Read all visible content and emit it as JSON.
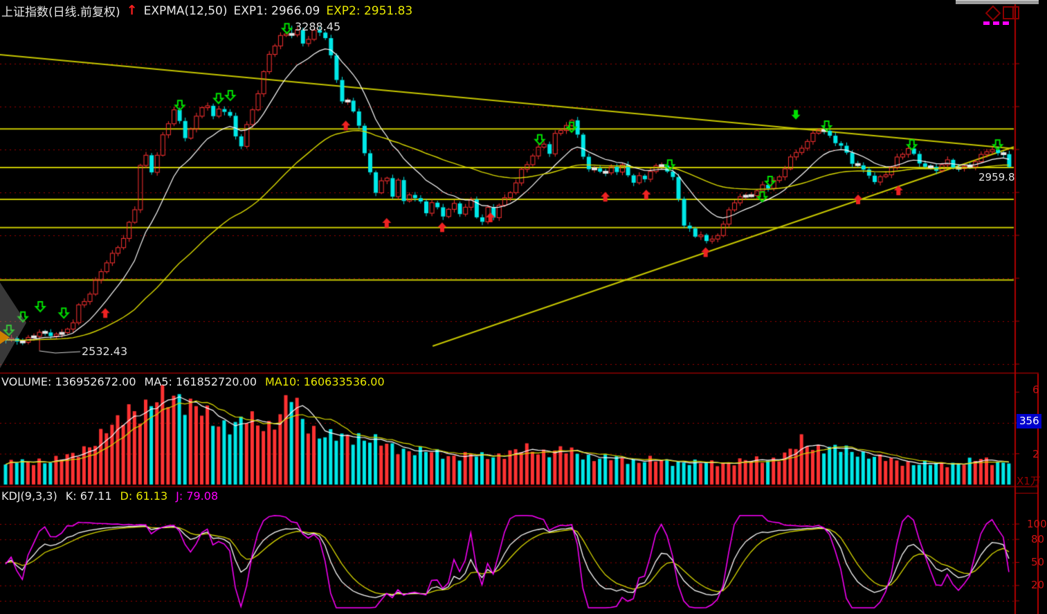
{
  "header": {
    "symbol": "上证指数(日线.前复权)",
    "signal_arrow": "↑",
    "indicator": "EXPMA(12,50)",
    "exp1": "EXP1: 2966.09",
    "exp2": "EXP2: 2951.83"
  },
  "volume_header": {
    "volume": "VOLUME: 136952672.00",
    "ma5": "MA5: 161852720.00",
    "ma10": "MA10: 160633536.00"
  },
  "kdj_header": {
    "name": "KDJ(9,3,3)",
    "k": "K: 67.11",
    "d": "D: 61.13",
    "j": "J: 79.08"
  },
  "price_labels": {
    "high": "3288.45",
    "low": "2532.43",
    "last": "2959.8"
  },
  "right_axis": {
    "volume_labels": [
      {
        "text": "6",
        "v": 60000
      },
      {
        "text": "2",
        "v": 20000
      }
    ],
    "volume_tag": {
      "text": "356",
      "v": 42000
    },
    "volume_scale": "X1万",
    "kdj_labels": [
      {
        "text": "100",
        "v": 100
      },
      {
        "text": "80",
        "v": 80
      },
      {
        "text": "50",
        "v": 50
      },
      {
        "text": "20",
        "v": 20
      }
    ]
  },
  "colors": {
    "up": "#ff3232",
    "down": "#00e8e8",
    "white_line": "#ffffff",
    "yellow_line": "#d9d900",
    "drawn_line": "#c8c800",
    "magenta": "#ff00ff",
    "grid": "#a00000",
    "separator": "#6e0000",
    "axis": "#b00000",
    "green_signal": "#00e000",
    "red_signal": "#ee2222",
    "bg": "#000000",
    "label_red": "#cc1414",
    "tag_blue": "#0000cc"
  },
  "chart_data": [
    {
      "type": "candlestick",
      "name": "price",
      "n": 180,
      "x_unit": "trading-day",
      "price_range": [
        2489,
        3303
      ],
      "grid_prices": [
        2500,
        2600,
        2700,
        2800,
        2900,
        3000,
        3100,
        3200
      ],
      "high_point": {
        "i": 51,
        "price": 3288.45
      },
      "low_point": {
        "i": 6,
        "price": 2532.43
      },
      "last_price": 2959.8,
      "exp1_value": 2966.09,
      "exp2_value": 2951.83,
      "close_anchors": [
        [
          0,
          2556
        ],
        [
          2,
          2550
        ],
        [
          3,
          2548
        ],
        [
          5,
          2572
        ],
        [
          6,
          2580
        ],
        [
          8,
          2566
        ],
        [
          10,
          2565
        ],
        [
          12,
          2600
        ],
        [
          13,
          2640
        ],
        [
          15,
          2665
        ],
        [
          17,
          2712
        ],
        [
          19,
          2755
        ],
        [
          21,
          2800
        ],
        [
          23,
          2860
        ],
        [
          24,
          2960
        ],
        [
          25,
          2978
        ],
        [
          26,
          2946
        ],
        [
          28,
          3036
        ],
        [
          30,
          3096
        ],
        [
          31,
          3060
        ],
        [
          32,
          3022
        ],
        [
          33,
          3046
        ],
        [
          35,
          3102
        ],
        [
          36,
          3110
        ],
        [
          37,
          3078
        ],
        [
          38,
          3094
        ],
        [
          39,
          3086
        ],
        [
          40,
          3070
        ],
        [
          41,
          3028
        ],
        [
          42,
          3012
        ],
        [
          43,
          3060
        ],
        [
          45,
          3135
        ],
        [
          46,
          3176
        ],
        [
          47,
          3216
        ],
        [
          48,
          3240
        ],
        [
          49,
          3262
        ],
        [
          50,
          3272
        ],
        [
          52,
          3280
        ],
        [
          53,
          3246
        ],
        [
          54,
          3256
        ],
        [
          55,
          3270
        ],
        [
          56,
          3268
        ],
        [
          57,
          3264
        ],
        [
          58,
          3222
        ],
        [
          59,
          3166
        ],
        [
          60,
          3118
        ],
        [
          61,
          3110
        ],
        [
          63,
          3054
        ],
        [
          64,
          2988
        ],
        [
          65,
          2948
        ],
        [
          66,
          2908
        ],
        [
          67,
          2930
        ],
        [
          68,
          2932
        ],
        [
          69,
          2890
        ],
        [
          70,
          2922
        ],
        [
          71,
          2874
        ],
        [
          72,
          2898
        ],
        [
          74,
          2882
        ],
        [
          75,
          2858
        ],
        [
          76,
          2874
        ],
        [
          78,
          2842
        ],
        [
          79,
          2858
        ],
        [
          80,
          2874
        ],
        [
          81,
          2858
        ],
        [
          83,
          2882
        ],
        [
          84,
          2842
        ],
        [
          85,
          2826
        ],
        [
          86,
          2858
        ],
        [
          87,
          2844
        ],
        [
          88,
          2874
        ],
        [
          90,
          2906
        ],
        [
          91,
          2922
        ],
        [
          92,
          2946
        ],
        [
          93,
          2962
        ],
        [
          95,
          3004
        ],
        [
          96,
          3020
        ],
        [
          97,
          2996
        ],
        [
          98,
          3036
        ],
        [
          99,
          3044
        ],
        [
          101,
          3060
        ],
        [
          102,
          3036
        ],
        [
          103,
          2988
        ],
        [
          104,
          2956
        ],
        [
          105,
          2962
        ],
        [
          107,
          2938
        ],
        [
          108,
          2956
        ],
        [
          109,
          2946
        ],
        [
          110,
          2962
        ],
        [
          112,
          2930
        ],
        [
          113,
          2938
        ],
        [
          114,
          2930
        ],
        [
          115,
          2946
        ],
        [
          117,
          2962
        ],
        [
          118,
          2954
        ],
        [
          119,
          2938
        ],
        [
          120,
          2890
        ],
        [
          121,
          2826
        ],
        [
          123,
          2792
        ],
        [
          124,
          2800
        ],
        [
          125,
          2784
        ],
        [
          127,
          2808
        ],
        [
          128,
          2826
        ],
        [
          129,
          2858
        ],
        [
          130,
          2874
        ],
        [
          132,
          2890
        ],
        [
          133,
          2898
        ],
        [
          134,
          2906
        ],
        [
          135,
          2922
        ],
        [
          136,
          2914
        ],
        [
          138,
          2930
        ],
        [
          139,
          2954
        ],
        [
          140,
          2980
        ],
        [
          142,
          3012
        ],
        [
          143,
          3020
        ],
        [
          144,
          3036
        ],
        [
          145,
          3044
        ],
        [
          146,
          3036
        ],
        [
          148,
          3020
        ],
        [
          149,
          3012
        ],
        [
          150,
          2996
        ],
        [
          151,
          2972
        ],
        [
          153,
          2946
        ],
        [
          154,
          2938
        ],
        [
          155,
          2922
        ],
        [
          156,
          2938
        ],
        [
          158,
          2962
        ],
        [
          159,
          2980
        ],
        [
          160,
          2988
        ],
        [
          161,
          2996
        ],
        [
          163,
          2972
        ],
        [
          164,
          2964
        ],
        [
          165,
          2962
        ],
        [
          166,
          2956
        ],
        [
          168,
          2968
        ],
        [
          169,
          2956
        ],
        [
          170,
          2954
        ],
        [
          172,
          2968
        ],
        [
          173,
          2976
        ],
        [
          174,
          2986
        ],
        [
          175,
          2994
        ],
        [
          176,
          2996
        ],
        [
          177,
          2988
        ],
        [
          178,
          2990
        ],
        [
          179,
          2959.8
        ]
      ],
      "hlines": [
        {
          "price": 3048,
          "i1": -1,
          "i2": 180.2
        },
        {
          "price": 2958,
          "i1": -1,
          "i2": 180.2
        },
        {
          "price": 2884,
          "i1": -1,
          "i2": 180.2
        },
        {
          "price": 2818,
          "i1": -1,
          "i2": 180.2
        },
        {
          "price": 2696,
          "i1": -1,
          "i2": 180.2
        }
      ],
      "trendlines": [
        {
          "i1": -1,
          "p1": 3221,
          "i2": 180.3,
          "p2": 3002
        },
        {
          "i1": 76.2,
          "p1": 2542,
          "i2": 180.3,
          "p2": 3006
        }
      ],
      "markers": {
        "sell_hollow": [
          {
            "i": 0.6,
            "p": 2579
          },
          {
            "i": 3.1,
            "p": 2610
          },
          {
            "i": 6.2,
            "p": 2634
          },
          {
            "i": 10.4,
            "p": 2619
          },
          {
            "i": 31.1,
            "p": 3103
          },
          {
            "i": 38,
            "p": 3119
          },
          {
            "i": 40.1,
            "p": 3126
          },
          {
            "i": 50.2,
            "p": 3282
          },
          {
            "i": 95.3,
            "p": 3023
          },
          {
            "i": 101,
            "p": 3052
          },
          {
            "i": 118.5,
            "p": 2964
          },
          {
            "i": 135,
            "p": 2890
          },
          {
            "i": 136.4,
            "p": 2926
          },
          {
            "i": 146.5,
            "p": 3055
          },
          {
            "i": 161.7,
            "p": 3011
          },
          {
            "i": 177,
            "p": 3011
          }
        ],
        "sell_solid": [
          {
            "i": 141,
            "p": 3081
          }
        ],
        "buy_solid": [
          {
            "i": 17.8,
            "p": 2619
          },
          {
            "i": 60.7,
            "p": 3056
          },
          {
            "i": 68,
            "p": 2829
          },
          {
            "i": 77.9,
            "p": 2819
          },
          {
            "i": 86.5,
            "p": 2842
          },
          {
            "i": 107,
            "p": 2890
          },
          {
            "i": 114.3,
            "p": 2895
          },
          {
            "i": 124.9,
            "p": 2761
          },
          {
            "i": 152.1,
            "p": 2884
          },
          {
            "i": 159.3,
            "p": 2905
          }
        ]
      }
    },
    {
      "type": "bar",
      "name": "volume",
      "unit": "万",
      "max": 62000,
      "grid_values": [
        20000,
        40000
      ],
      "anchors": [
        [
          0,
          13000
        ],
        [
          2,
          15000
        ],
        [
          4,
          14000
        ],
        [
          6,
          16000
        ],
        [
          8,
          15000
        ],
        [
          10,
          17000
        ],
        [
          12,
          19000
        ],
        [
          14,
          24000
        ],
        [
          16,
          28000
        ],
        [
          18,
          34000
        ],
        [
          20,
          40000
        ],
        [
          22,
          52000
        ],
        [
          24,
          46000
        ],
        [
          26,
          50000
        ],
        [
          28,
          56000
        ],
        [
          30,
          60000
        ],
        [
          31,
          58000
        ],
        [
          33,
          50000
        ],
        [
          35,
          46000
        ],
        [
          37,
          42000
        ],
        [
          39,
          40000
        ],
        [
          41,
          38000
        ],
        [
          43,
          42000
        ],
        [
          45,
          40000
        ],
        [
          47,
          39000
        ],
        [
          49,
          45000
        ],
        [
          51,
          57000
        ],
        [
          53,
          42000
        ],
        [
          55,
          36000
        ],
        [
          57,
          32000
        ],
        [
          59,
          30000
        ],
        [
          61,
          30000
        ],
        [
          63,
          32000
        ],
        [
          65,
          30000
        ],
        [
          67,
          26000
        ],
        [
          69,
          24000
        ],
        [
          71,
          23000
        ],
        [
          73,
          22000
        ],
        [
          75,
          21000
        ],
        [
          77,
          20000
        ],
        [
          79,
          19000
        ],
        [
          81,
          18500
        ],
        [
          83,
          19000
        ],
        [
          85,
          18000
        ],
        [
          87,
          19000
        ],
        [
          89,
          20000
        ],
        [
          91,
          21000
        ],
        [
          93,
          23000
        ],
        [
          95,
          22000
        ],
        [
          97,
          21000
        ],
        [
          99,
          22000
        ],
        [
          101,
          21000
        ],
        [
          103,
          19000
        ],
        [
          105,
          17500
        ],
        [
          107,
          17000
        ],
        [
          109,
          16500
        ],
        [
          111,
          16000
        ],
        [
          113,
          15500
        ],
        [
          115,
          16000
        ],
        [
          117,
          15000
        ],
        [
          119,
          14500
        ],
        [
          121,
          15000
        ],
        [
          123,
          14000
        ],
        [
          125,
          13500
        ],
        [
          127,
          14000
        ],
        [
          129,
          14500
        ],
        [
          131,
          15000
        ],
        [
          133,
          15500
        ],
        [
          135,
          16000
        ],
        [
          137,
          17000
        ],
        [
          139,
          19000
        ],
        [
          141,
          24000
        ],
        [
          142,
          28000
        ],
        [
          144,
          25000
        ],
        [
          146,
          24000
        ],
        [
          148,
          23000
        ],
        [
          150,
          22000
        ],
        [
          152,
          21000
        ],
        [
          154,
          19500
        ],
        [
          156,
          17000
        ],
        [
          158,
          15500
        ],
        [
          160,
          14500
        ],
        [
          162,
          14000
        ],
        [
          164,
          13500
        ],
        [
          166,
          13000
        ],
        [
          168,
          13500
        ],
        [
          170,
          14000
        ],
        [
          172,
          15000
        ],
        [
          174,
          16000
        ],
        [
          176,
          15000
        ],
        [
          178,
          14500
        ],
        [
          179,
          13695
        ]
      ],
      "ma_periods": [
        5,
        10
      ]
    },
    {
      "type": "line",
      "name": "kdj",
      "params": "9,3,3",
      "range": [
        0,
        100
      ],
      "grid_values": [
        0,
        20,
        50,
        80,
        100
      ],
      "series": [
        "K",
        "D",
        "J"
      ],
      "k": 67.11,
      "d": 61.13,
      "j": 79.08,
      "derived_from": "price closes with KDJ(9,3,3)"
    }
  ]
}
